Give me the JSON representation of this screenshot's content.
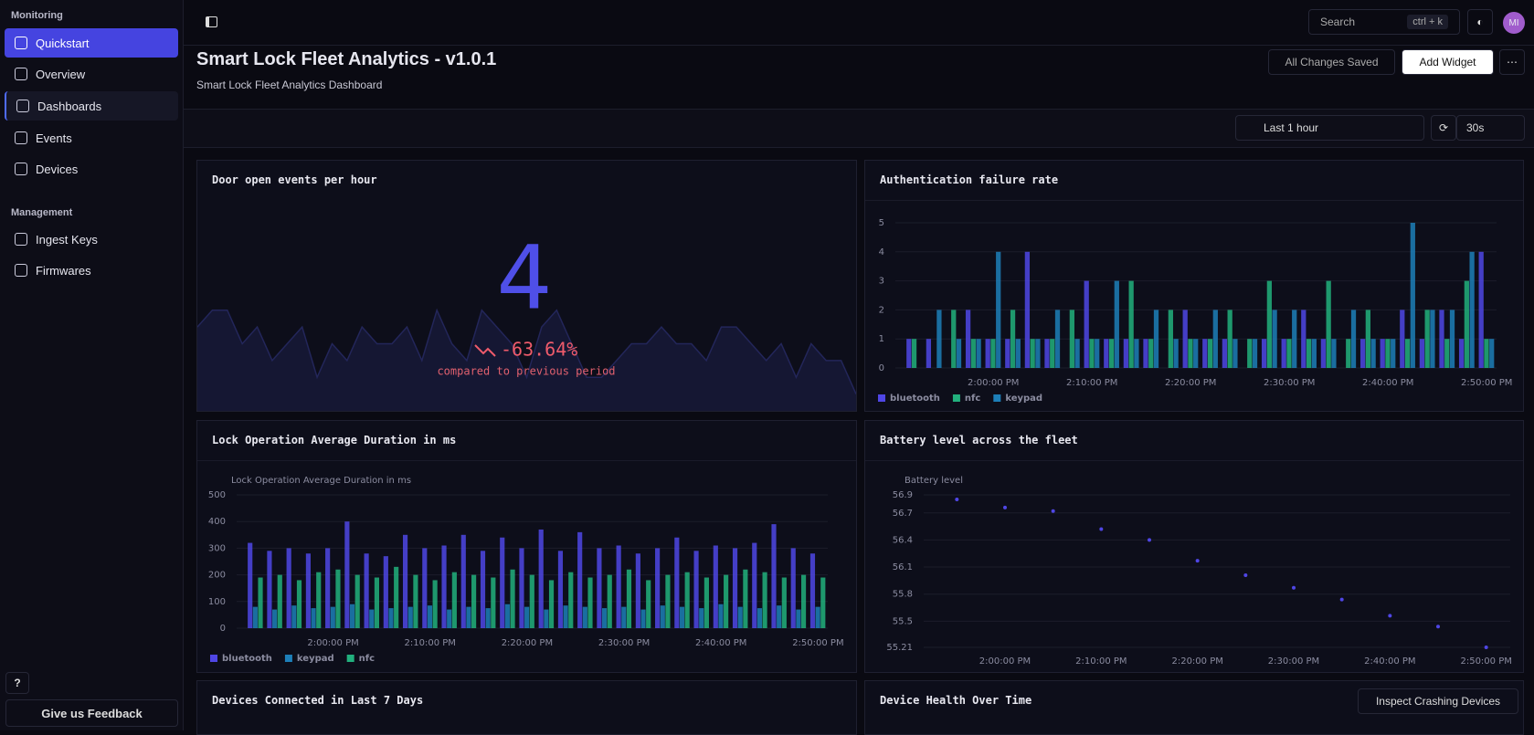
{
  "sidebar": {
    "sections": [
      {
        "title": "Monitoring",
        "items": [
          "Quickstart",
          "Overview",
          "Dashboards",
          "Events",
          "Devices"
        ]
      },
      {
        "title": "Management",
        "items": [
          "Ingest Keys",
          "Firmwares"
        ]
      }
    ],
    "help": "?",
    "feedback": "Give us Feedback"
  },
  "header": {
    "search": "Search",
    "shortcut": "ctrl + k",
    "avatar": "MI",
    "title": "Smart Lock Fleet Analytics - v1.0.1",
    "subtitle": "Smart Lock Fleet Analytics Dashboard",
    "saved": "All Changes Saved",
    "add_widget": "Add Widget",
    "range": "Last 1 hour",
    "refresh": "30s"
  },
  "chart_data": [
    {
      "type": "stat",
      "title": "Door open events per hour",
      "value": 4,
      "change": -63.64,
      "change_label": "-63.64%",
      "caption": "compared to previous period",
      "ylim": [
        0,
        8
      ],
      "trend": [
        5,
        6,
        6,
        4,
        5,
        3,
        4,
        5,
        2,
        4,
        3,
        5,
        4,
        4,
        5,
        3,
        6,
        4,
        3,
        6,
        5,
        4,
        2,
        5,
        6,
        4,
        2,
        2,
        3,
        4,
        4,
        5,
        4,
        4,
        3,
        5,
        5,
        4,
        3,
        4,
        2,
        4,
        3,
        3,
        1
      ]
    },
    {
      "type": "bar",
      "title": "Authentication failure rate",
      "categories": [
        null,
        null,
        null,
        null,
        "2:00:00 PM",
        null,
        null,
        null,
        null,
        "2:10:00 PM",
        null,
        null,
        null,
        null,
        "2:20:00 PM",
        null,
        null,
        null,
        null,
        "2:30:00 PM",
        null,
        null,
        null,
        null,
        "2:40:00 PM",
        null,
        null,
        null,
        null,
        "2:50:00 PM"
      ],
      "ylim": [
        0,
        5
      ],
      "yticks": [
        0,
        1,
        2,
        3,
        4,
        5
      ],
      "grid": true,
      "legend": "bottom-left",
      "series": [
        {
          "name": "bluetooth",
          "color": "#4f46e5",
          "values": [
            1,
            1,
            0,
            2,
            1,
            1,
            4,
            1,
            0,
            3,
            1,
            1,
            1,
            0,
            2,
            1,
            1,
            0,
            1,
            1,
            2,
            1,
            0,
            1,
            1,
            2,
            1,
            2,
            1,
            4
          ]
        },
        {
          "name": "nfc",
          "color": "#22b07d",
          "values": [
            1,
            0,
            2,
            1,
            1,
            2,
            1,
            1,
            2,
            1,
            1,
            3,
            1,
            2,
            1,
            1,
            2,
            1,
            3,
            1,
            1,
            3,
            1,
            2,
            1,
            1,
            2,
            1,
            3,
            1
          ]
        },
        {
          "name": "keypad",
          "color": "#1d7fb8",
          "values": [
            0,
            2,
            1,
            1,
            4,
            1,
            1,
            2,
            1,
            1,
            3,
            1,
            2,
            1,
            1,
            2,
            1,
            1,
            2,
            2,
            1,
            1,
            2,
            1,
            1,
            5,
            2,
            2,
            4,
            1
          ]
        }
      ]
    },
    {
      "type": "bar",
      "title": "Lock Operation Average Duration in ms",
      "y_label": "Lock Operation Average Duration in ms",
      "categories": [
        null,
        null,
        null,
        null,
        "2:00:00 PM",
        null,
        null,
        null,
        null,
        "2:10:00 PM",
        null,
        null,
        null,
        null,
        "2:20:00 PM",
        null,
        null,
        null,
        null,
        "2:30:00 PM",
        null,
        null,
        null,
        null,
        "2:40:00 PM",
        null,
        null,
        null,
        null,
        "2:50:00 PM"
      ],
      "ylim": [
        0,
        500
      ],
      "yticks": [
        0,
        100,
        200,
        300,
        400,
        500
      ],
      "grid": true,
      "legend": "bottom-left",
      "series": [
        {
          "name": "bluetooth",
          "color": "#4f46e5",
          "values": [
            320,
            290,
            300,
            280,
            300,
            400,
            280,
            270,
            350,
            300,
            310,
            350,
            290,
            340,
            300,
            370,
            290,
            360,
            300,
            310,
            280,
            300,
            340,
            290,
            310,
            300,
            320,
            390,
            300,
            280
          ]
        },
        {
          "name": "keypad",
          "color": "#1d7fb8",
          "values": [
            80,
            70,
            85,
            75,
            80,
            90,
            70,
            75,
            80,
            85,
            70,
            80,
            75,
            90,
            80,
            70,
            85,
            80,
            75,
            80,
            70,
            85,
            80,
            75,
            90,
            80,
            75,
            85,
            70,
            80
          ]
        },
        {
          "name": "nfc",
          "color": "#22b07d",
          "values": [
            190,
            200,
            180,
            210,
            220,
            200,
            190,
            230,
            200,
            180,
            210,
            200,
            190,
            220,
            200,
            180,
            210,
            190,
            200,
            220,
            180,
            200,
            210,
            190,
            200,
            220,
            210,
            190,
            200,
            190
          ]
        }
      ]
    },
    {
      "type": "scatter",
      "title": "Battery level across the fleet",
      "y_label": "Battery level",
      "categories": [
        null,
        "2:00:00 PM",
        null,
        "2:10:00 PM",
        null,
        "2:20:00 PM",
        null,
        "2:30:00 PM",
        null,
        "2:40:00 PM",
        null,
        "2:50:00 PM"
      ],
      "ylim": [
        55.21,
        56.9
      ],
      "yticks": [
        55.21,
        55.5,
        55.8,
        56.1,
        56.4,
        56.7,
        56.9
      ],
      "grid": true,
      "color": "#4f46e5",
      "values": [
        56.85,
        56.76,
        56.72,
        56.52,
        56.4,
        56.17,
        56.01,
        55.87,
        55.74,
        55.56,
        55.44,
        55.21
      ]
    }
  ],
  "bottom_panels": [
    {
      "title": "Devices Connected in Last 7 Days"
    },
    {
      "title": "Device Health Over Time",
      "action": "Inspect Crashing Devices"
    }
  ]
}
